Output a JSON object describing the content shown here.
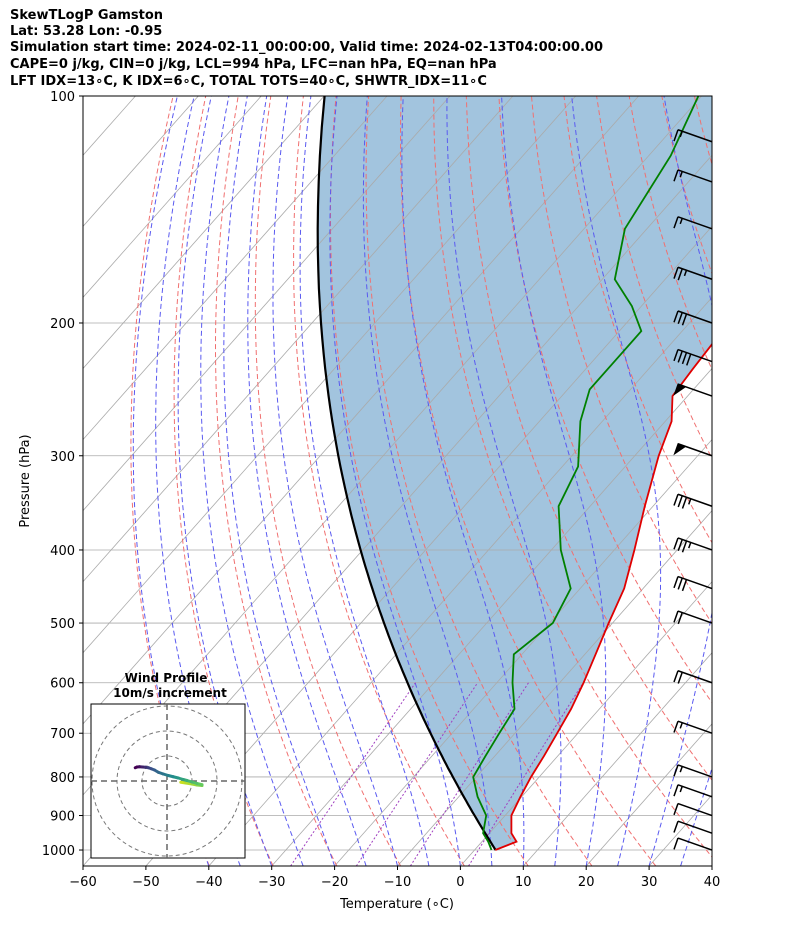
{
  "header": {
    "line1": "SkewTLogP Gamston",
    "line2": "Lat: 53.28   Lon: -0.95",
    "line3": "Simulation start time: 2024-02-11_00:00:00, Valid time: 2024-02-13T04:00:00.00",
    "line4": "CAPE=0 j/kg, CIN=0 j/kg, LCL=994 hPa, LFC=nan hPa, EQ=nan hPa",
    "line5": "LFT IDX=13∘C, K IDX=6∘C, TOTAL TOTS=40∘C, SHWTR_IDX=11∘C"
  },
  "chart_data": {
    "type": "skewt",
    "xlabel": "Temperature (∘C)",
    "ylabel": "Pressure (hPa)",
    "xlim": [
      -60,
      40
    ],
    "ylim": [
      1050,
      100
    ],
    "x_ticks": [
      -60,
      -50,
      -40,
      -30,
      -20,
      -10,
      0,
      10,
      20,
      30,
      40
    ],
    "x_tick_labels": [
      "−60",
      "−50",
      "−40",
      "−30",
      "−20",
      "−10",
      "0",
      "10",
      "20",
      "30",
      "40"
    ],
    "p_ticks": [
      100,
      200,
      300,
      400,
      500,
      600,
      700,
      800,
      900,
      1000
    ],
    "p_tick_labels": [
      "100",
      "200",
      "300",
      "400",
      "500",
      "600",
      "700",
      "800",
      "900",
      "1000"
    ],
    "colors": {
      "temperature": "#e00000",
      "dewpoint": "#008000",
      "parcel": "#000000",
      "shade": "#a2c4de",
      "dry_adiabat": "#f07070",
      "moist_adiabat": "#5a5af0",
      "isotherm": "#aaaaaa",
      "mixing_ratio": "#a040c0"
    },
    "temperature_profile": [
      [
        1000,
        3.3
      ],
      [
        975,
        5.5
      ],
      [
        950,
        3.5
      ],
      [
        900,
        1.0
      ],
      [
        850,
        -0.2
      ],
      [
        800,
        -1.3
      ],
      [
        750,
        -2.2
      ],
      [
        700,
        -3.3
      ],
      [
        650,
        -4.5
      ],
      [
        600,
        -6.2
      ],
      [
        550,
        -8.3
      ],
      [
        500,
        -10.6
      ],
      [
        450,
        -13.0
      ],
      [
        400,
        -16.8
      ],
      [
        350,
        -21.3
      ],
      [
        300,
        -26.2
      ],
      [
        270,
        -29.0
      ],
      [
        250,
        -32.4
      ],
      [
        230,
        -33.0
      ],
      [
        210,
        -33.5
      ],
      [
        190,
        -31.8
      ],
      [
        175,
        -29.2
      ],
      [
        165,
        -29.5
      ],
      [
        150,
        -32.5
      ],
      [
        125,
        -39.5
      ],
      [
        110,
        -45.5
      ],
      [
        100,
        -51.0
      ]
    ],
    "dewpoint_profile": [
      [
        1000,
        2.7
      ],
      [
        975,
        1.0
      ],
      [
        950,
        -1.0
      ],
      [
        900,
        -3.0
      ],
      [
        850,
        -7.0
      ],
      [
        800,
        -10.5
      ],
      [
        750,
        -11.5
      ],
      [
        700,
        -12.5
      ],
      [
        650,
        -13.5
      ],
      [
        600,
        -17.5
      ],
      [
        550,
        -21.3
      ],
      [
        500,
        -19.5
      ],
      [
        450,
        -21.5
      ],
      [
        400,
        -28.5
      ],
      [
        350,
        -35.0
      ],
      [
        310,
        -37.5
      ],
      [
        270,
        -43.5
      ],
      [
        245,
        -46.5
      ],
      [
        220,
        -46.5
      ],
      [
        205,
        -46.5
      ],
      [
        190,
        -51.5
      ],
      [
        175,
        -58.0
      ],
      [
        150,
        -63.5
      ],
      [
        120,
        -66.5
      ],
      [
        100,
        -70.5
      ]
    ],
    "parcel_theta_K": 276.5,
    "wind_barbs": [
      {
        "p": 1000,
        "speed_kt": 10,
        "dir": 270
      },
      {
        "p": 950,
        "speed_kt": 10,
        "dir": 270
      },
      {
        "p": 900,
        "speed_kt": 10,
        "dir": 270
      },
      {
        "p": 850,
        "speed_kt": 15,
        "dir": 270
      },
      {
        "p": 800,
        "speed_kt": 15,
        "dir": 270
      },
      {
        "p": 700,
        "speed_kt": 15,
        "dir": 270
      },
      {
        "p": 600,
        "speed_kt": 20,
        "dir": 270
      },
      {
        "p": 500,
        "speed_kt": 20,
        "dir": 270
      },
      {
        "p": 450,
        "speed_kt": 30,
        "dir": 270
      },
      {
        "p": 400,
        "speed_kt": 35,
        "dir": 270
      },
      {
        "p": 350,
        "speed_kt": 35,
        "dir": 270
      },
      {
        "p": 300,
        "speed_kt": 50,
        "dir": 270
      },
      {
        "p": 250,
        "speed_kt": 50,
        "dir": 270
      },
      {
        "p": 225,
        "speed_kt": 40,
        "dir": 270
      },
      {
        "p": 200,
        "speed_kt": 30,
        "dir": 270
      },
      {
        "p": 175,
        "speed_kt": 25,
        "dir": 270
      },
      {
        "p": 150,
        "speed_kt": 15,
        "dir": 270
      },
      {
        "p": 130,
        "speed_kt": 15,
        "dir": 270
      },
      {
        "p": 115,
        "speed_kt": 15,
        "dir": 270
      }
    ],
    "hodograph": {
      "title": "Wind Profile",
      "subtitle": "10m/s increment",
      "rings": [
        10,
        20,
        30
      ],
      "points": [
        [
          15,
          5.5,
          -0.5
        ],
        [
          17,
          7.5,
          -0.8
        ],
        [
          19,
          10,
          -1.2
        ],
        [
          21,
          12,
          -1.6
        ],
        [
          23,
          14,
          -1.8
        ],
        [
          25,
          14,
          -1.5
        ],
        [
          27,
          12,
          -1
        ],
        [
          29,
          10,
          -0.4
        ],
        [
          31,
          8,
          0.2
        ],
        [
          33,
          6.5,
          0.6
        ],
        [
          35,
          4.5,
          1.2
        ],
        [
          37,
          2.5,
          1.7
        ],
        [
          39,
          0.5,
          2.2
        ],
        [
          41,
          -1.5,
          2.8
        ],
        [
          43,
          -3.5,
          3.5
        ],
        [
          45,
          -5,
          4.4
        ],
        [
          47,
          -6.3,
          4.9
        ],
        [
          49,
          -7.4,
          5.3
        ],
        [
          51,
          -8.6,
          5.5
        ],
        [
          53,
          -9.8,
          5.6
        ],
        [
          55,
          -11,
          5.7
        ],
        [
          57,
          -12,
          5.6
        ],
        [
          59,
          -12.7,
          5.3
        ]
      ]
    }
  }
}
